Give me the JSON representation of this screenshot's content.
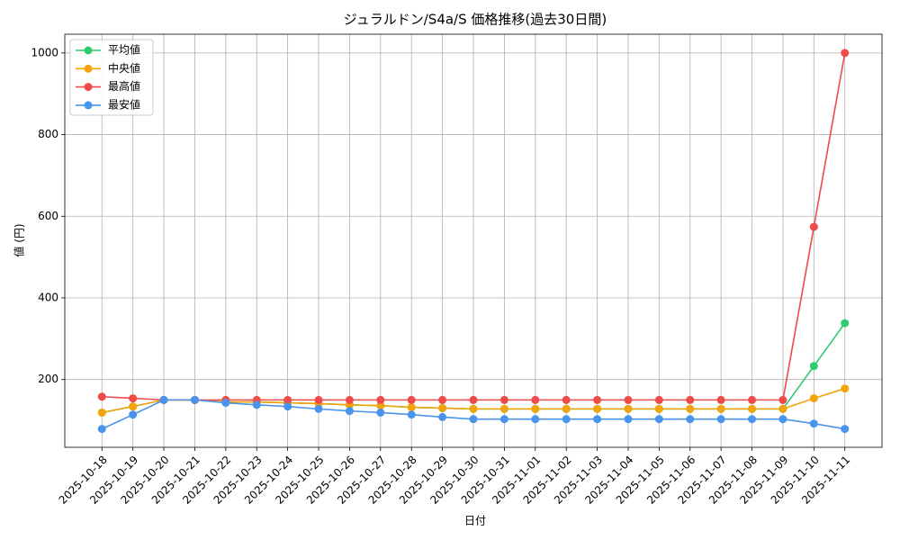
{
  "chart_data": {
    "type": "line",
    "title": "ジュラルドン/S4a/S 価格推移(過去30日間)",
    "x_label": "日付",
    "y_label": "値 (円)",
    "categories": [
      "2025-10-18",
      "2025-10-19",
      "2025-10-20",
      "2025-10-21",
      "2025-10-22",
      "2025-10-23",
      "2025-10-24",
      "2025-10-25",
      "2025-10-26",
      "2025-10-27",
      "2025-10-28",
      "2025-10-29",
      "2025-10-30",
      "2025-10-31",
      "2025-11-01",
      "2025-11-02",
      "2025-11-03",
      "2025-11-04",
      "2025-11-05",
      "2025-11-06",
      "2025-11-07",
      "2025-11-08",
      "2025-11-09",
      "2025-11-10",
      "2025-11-11"
    ],
    "series": [
      {
        "name": "平均値",
        "color": "#2ecc71",
        "values": [
          119,
          134,
          150,
          150,
          145,
          145,
          143,
          141,
          138,
          136,
          132,
          130,
          128,
          128,
          128,
          128,
          128,
          128,
          128,
          128,
          128,
          128,
          128,
          233,
          338
        ]
      },
      {
        "name": "中央値",
        "color": "#f5a30a",
        "values": [
          119,
          134,
          150,
          150,
          145,
          145,
          143,
          141,
          138,
          136,
          132,
          130,
          128,
          128,
          128,
          128,
          128,
          128,
          128,
          128,
          128,
          128,
          128,
          154,
          178
        ]
      },
      {
        "name": "最高値",
        "color": "#ef4b4b",
        "values": [
          158,
          154,
          150,
          150,
          150,
          150,
          150,
          150,
          150,
          150,
          150,
          150,
          150,
          150,
          150,
          150,
          150,
          150,
          150,
          150,
          150,
          150,
          150,
          574,
          1000
        ]
      },
      {
        "name": "最安値",
        "color": "#4a94ec",
        "values": [
          79,
          114,
          150,
          150,
          143,
          138,
          134,
          128,
          123,
          119,
          114,
          108,
          103,
          103,
          103,
          103,
          103,
          103,
          103,
          103,
          103,
          103,
          103,
          92,
          79
        ]
      }
    ],
    "ylim": [
      34,
      1046
    ],
    "yticks": [
      200,
      400,
      600,
      800,
      1000
    ],
    "grid": true,
    "legend": "upper-left"
  }
}
